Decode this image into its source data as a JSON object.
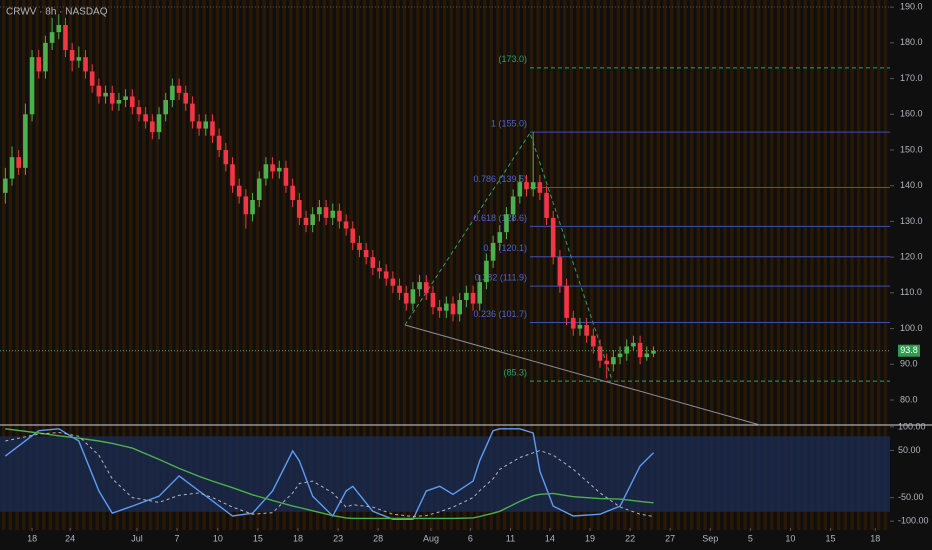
{
  "chart_data": [
    {
      "type": "candlestick",
      "title": "CRWV · 8h · NASDAQ",
      "xlim": [
        -0.8,
        132.4
      ],
      "xticks": [
        {
          "value": 4.0,
          "label": "18"
        },
        {
          "value": 9.7,
          "label": "24"
        },
        {
          "value": 19.7,
          "label": "Jul"
        },
        {
          "value": 25.7,
          "label": "7"
        },
        {
          "value": 31.8,
          "label": "10"
        },
        {
          "value": 37.8,
          "label": "15"
        },
        {
          "value": 43.8,
          "label": "18"
        },
        {
          "value": 49.8,
          "label": "23"
        },
        {
          "value": 55.8,
          "label": "28"
        },
        {
          "value": 63.7,
          "label": "Aug"
        },
        {
          "value": 69.6,
          "label": "6"
        },
        {
          "value": 75.6,
          "label": "11"
        },
        {
          "value": 81.5,
          "label": "14"
        },
        {
          "value": 87.5,
          "label": "19"
        },
        {
          "value": 93.5,
          "label": "22"
        },
        {
          "value": 99.5,
          "label": "27"
        },
        {
          "value": 105.5,
          "label": "Sep"
        },
        {
          "value": 111.5,
          "label": "5"
        },
        {
          "value": 117.5,
          "label": "10"
        },
        {
          "value": 123.5,
          "label": "15"
        },
        {
          "value": 130.2,
          "label": "18"
        }
      ],
      "ylim": [
        73,
        192
      ],
      "yticks": [
        {
          "value": 190,
          "label": "190.0"
        },
        {
          "value": 180,
          "label": "180.0"
        },
        {
          "value": 170,
          "label": "170.0"
        },
        {
          "value": 160,
          "label": "160.0"
        },
        {
          "value": 150,
          "label": "150.0"
        },
        {
          "value": 140,
          "label": "140.0"
        },
        {
          "value": 130,
          "label": "130.0"
        },
        {
          "value": 120,
          "label": "120.0"
        },
        {
          "value": 110,
          "label": "110.0"
        },
        {
          "value": 100,
          "label": "100.0"
        },
        {
          "value": 90,
          "label": "90.0"
        },
        {
          "value": 80,
          "label": "80.0"
        }
      ],
      "up_color": "#4caf50",
      "down_color": "#f23645",
      "series": [
        {
          "name": "CRWV",
          "open": [
            138,
            142,
            148,
            145,
            160,
            176,
            172,
            180,
            183,
            185,
            178,
            175,
            176,
            172,
            168,
            165,
            166,
            163,
            164,
            165,
            162,
            160,
            158,
            155,
            160,
            164,
            168,
            166,
            163,
            158,
            156,
            158,
            154,
            150,
            146,
            140,
            137,
            132,
            136,
            142,
            146,
            144,
            145,
            140,
            136,
            131,
            129,
            132,
            134,
            131,
            133,
            130,
            128,
            124,
            122,
            120,
            117,
            116,
            114,
            112,
            110,
            107,
            111,
            113,
            110,
            106,
            105,
            107,
            104,
            108,
            110,
            107,
            113,
            119,
            124,
            127,
            132,
            137,
            141,
            139,
            141,
            138,
            131,
            120,
            112,
            103,
            100,
            101,
            98,
            95,
            91,
            90,
            92,
            93,
            95,
            96,
            92,
            93
          ],
          "high": [
            145,
            151,
            150,
            163,
            178,
            178,
            182,
            187,
            188,
            187,
            180,
            179,
            178,
            174,
            170,
            168,
            168,
            166,
            167,
            167,
            164,
            162,
            160,
            162,
            166,
            170,
            170,
            168,
            165,
            160,
            160,
            160,
            156,
            152,
            148,
            142,
            139,
            138,
            144,
            148,
            148,
            147,
            147,
            142,
            138,
            133,
            134,
            136,
            136,
            135,
            135,
            132,
            130,
            126,
            124,
            122,
            119,
            118,
            116,
            114,
            112,
            113,
            115,
            115,
            112,
            108,
            109,
            109,
            110,
            112,
            112,
            115,
            121,
            126,
            129,
            134,
            139,
            143,
            143,
            155,
            143,
            140,
            133,
            122,
            114,
            105,
            103,
            103,
            100,
            97,
            93,
            94,
            95,
            97,
            98,
            98,
            95,
            95
          ],
          "low": [
            135,
            140,
            143,
            143,
            158,
            170,
            170,
            178,
            181,
            176,
            172,
            173,
            170,
            166,
            163,
            163,
            161,
            161,
            162,
            160,
            158,
            156,
            153,
            153,
            158,
            162,
            164,
            161,
            156,
            154,
            154,
            152,
            148,
            144,
            138,
            135,
            128,
            130,
            134,
            140,
            142,
            142,
            138,
            134,
            129,
            127,
            127,
            130,
            129,
            129,
            128,
            126,
            122,
            120,
            118,
            115,
            114,
            112,
            110,
            108,
            105,
            105,
            109,
            108,
            104,
            103,
            103,
            102,
            102,
            106,
            105,
            105,
            111,
            117,
            122,
            125,
            130,
            135,
            137,
            137,
            136,
            129,
            118,
            110,
            101,
            98,
            98,
            96,
            93,
            89,
            86,
            88,
            90,
            91,
            94,
            90,
            91,
            92
          ],
          "close": [
            142,
            148,
            145,
            160,
            176,
            172,
            180,
            183,
            185,
            178,
            175,
            176,
            172,
            168,
            165,
            166,
            163,
            164,
            165,
            162,
            160,
            158,
            155,
            160,
            164,
            168,
            166,
            163,
            158,
            156,
            158,
            154,
            150,
            146,
            140,
            137,
            132,
            136,
            142,
            146,
            144,
            145,
            140,
            136,
            131,
            129,
            132,
            134,
            131,
            133,
            130,
            128,
            124,
            122,
            120,
            117,
            116,
            114,
            112,
            110,
            107,
            111,
            113,
            110,
            106,
            105,
            107,
            104,
            108,
            110,
            107,
            113,
            119,
            124,
            127,
            132,
            137,
            141,
            139,
            141,
            138,
            131,
            120,
            112,
            103,
            100,
            101,
            98,
            95,
            91,
            90,
            92,
            93,
            95,
            96,
            92,
            93,
            93.8
          ]
        }
      ],
      "fib": {
        "levels": [
          173.0,
          155.0,
          139.5,
          128.6,
          120.1,
          111.9,
          101.7,
          85.3
        ],
        "labels": [
          "(173.0)",
          "1 (155.0)",
          "0.786 (139.5)",
          "0.618 (128.6)",
          "0.5 (120.1)",
          "0.382 (111.9)",
          "0.236 (101.7)",
          "(85.3)"
        ],
        "colors": [
          "#2e9e6e",
          "#3f51b5",
          "#3f51b5",
          "#3f51b5",
          "#3f51b5",
          "#3f51b5",
          "#3f51b5",
          "#2e9e6e"
        ]
      }
    },
    {
      "type": "line",
      "x": [
        0,
        5,
        8,
        11,
        14,
        16,
        19,
        23,
        26,
        29,
        31,
        34,
        37,
        40,
        43,
        44,
        46,
        49,
        51,
        52,
        55,
        58,
        61,
        63,
        65,
        67,
        70,
        71,
        73,
        74,
        77,
        79,
        80,
        82,
        85,
        89,
        92,
        95,
        97
      ],
      "ylim": [
        -108,
        104
      ],
      "yticks": [
        {
          "value": 100,
          "label": "100.00"
        },
        {
          "value": 50,
          "label": "50.00"
        },
        {
          "value": -50,
          "label": "-50.00"
        },
        {
          "value": -100,
          "label": "-100.00"
        }
      ],
      "band": [
        -80,
        80
      ],
      "band_color": "#1a2a4f",
      "series": [
        {
          "color": "#5b9cf6",
          "dash": false,
          "values": [
            38,
            92,
            96,
            70,
            -36,
            -83,
            -68,
            -47,
            -4,
            -36,
            -57,
            -89,
            -83,
            -36,
            49,
            28,
            -47,
            -89,
            -36,
            -26,
            -79,
            -96,
            -96,
            -36,
            -26,
            -43,
            -15,
            28,
            92,
            96,
            96,
            87,
            6,
            -68,
            -89,
            -85,
            -68,
            17,
            45
          ]
        },
        {
          "color": "#4caf50",
          "dash": false,
          "values": [
            96,
            87,
            81,
            76,
            70,
            65,
            55,
            31,
            12,
            -5,
            -15,
            -29,
            -44,
            -56,
            -68,
            -71,
            -78,
            -88,
            -93,
            -94,
            -94,
            -94,
            -94,
            -94,
            -94,
            -94,
            -93,
            -90,
            -83,
            -79,
            -58,
            -46,
            -43,
            -41,
            -48,
            -52,
            -53,
            -58,
            -61
          ]
        },
        {
          "color": "#b2b5be",
          "dash": true,
          "values": [
            70,
            85,
            88,
            80,
            40,
            -10,
            -50,
            -60,
            -45,
            -40,
            -50,
            -70,
            -85,
            -82,
            -40,
            -20,
            -15,
            -40,
            -70,
            -65,
            -70,
            -85,
            -90,
            -88,
            -80,
            -70,
            -50,
            -35,
            -10,
            10,
            35,
            45,
            50,
            40,
            10,
            -40,
            -70,
            -85,
            -90
          ]
        }
      ]
    }
  ]
}
